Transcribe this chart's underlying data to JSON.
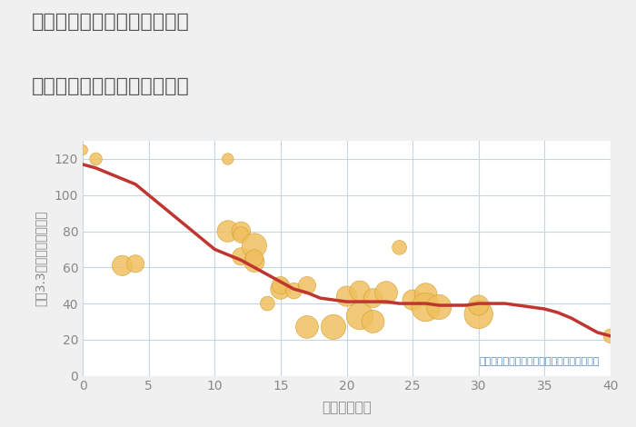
{
  "title_line1": "兵庫県姫路市香寺町矢田部の",
  "title_line2": "築年数別中古マンション価格",
  "xlabel": "築年数（年）",
  "ylabel": "坪（3.3㎡）単価（万円）",
  "annotation": "円の大きさは、取引のあった物件面積を示す",
  "xlim": [
    0,
    40
  ],
  "ylim": [
    0,
    130
  ],
  "xticks": [
    0,
    5,
    10,
    15,
    20,
    25,
    30,
    35,
    40
  ],
  "yticks": [
    0,
    20,
    40,
    60,
    80,
    100,
    120
  ],
  "bg_color": "#f0f0f0",
  "plot_bg_color": "#ffffff",
  "grid_color": "#c5d5e5",
  "line_color": "#c03530",
  "scatter_color": "#f0c060",
  "scatter_edge": "#d4a030",
  "title_color": "#555555",
  "axis_color": "#888888",
  "annotation_color": "#5588bb",
  "line_x": [
    0,
    1,
    2,
    3,
    4,
    5,
    6,
    7,
    8,
    9,
    10,
    11,
    12,
    13,
    14,
    15,
    16,
    17,
    18,
    19,
    20,
    21,
    22,
    23,
    24,
    25,
    26,
    27,
    28,
    29,
    30,
    31,
    32,
    33,
    34,
    35,
    36,
    37,
    38,
    39,
    40
  ],
  "line_y": [
    117,
    115,
    112,
    109,
    106,
    100,
    94,
    88,
    82,
    76,
    70,
    67,
    64,
    60,
    56,
    52,
    48,
    46,
    43,
    42,
    41,
    41,
    41,
    41,
    40,
    40,
    40,
    39,
    39,
    39,
    40,
    40,
    40,
    39,
    38,
    37,
    35,
    32,
    28,
    24,
    22
  ],
  "scatter_x": [
    0,
    1,
    3,
    4,
    11,
    11,
    12,
    12,
    12,
    13,
    13,
    13,
    14,
    15,
    15,
    16,
    17,
    17,
    19,
    20,
    21,
    21,
    22,
    22,
    23,
    24,
    25,
    26,
    26,
    27,
    30,
    30,
    40
  ],
  "scatter_y": [
    125,
    120,
    61,
    62,
    120,
    80,
    80,
    78,
    66,
    72,
    63,
    65,
    40,
    48,
    50,
    47,
    50,
    27,
    27,
    44,
    33,
    47,
    43,
    30,
    46,
    71,
    42,
    45,
    38,
    38,
    34,
    39,
    22
  ],
  "scatter_size": [
    20,
    30,
    80,
    60,
    25,
    90,
    70,
    50,
    60,
    120,
    80,
    60,
    40,
    80,
    60,
    50,
    60,
    100,
    120,
    80,
    140,
    80,
    70,
    100,
    100,
    40,
    80,
    100,
    160,
    120,
    160,
    80,
    40
  ]
}
